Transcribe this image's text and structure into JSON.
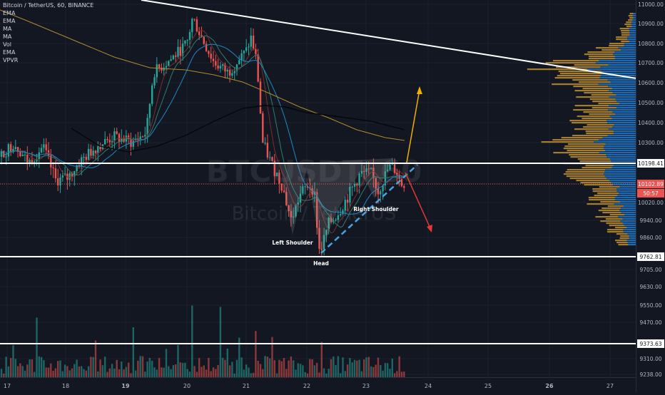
{
  "header": {
    "title": "Bitcoin / TetherUS, 60, BINANCE",
    "indicators": [
      "EMA",
      "EMA",
      "MA",
      "MA",
      "Vol",
      "EMA",
      "VPVR"
    ]
  },
  "watermark": {
    "symbol": "BTCUSDT, 60",
    "name": "Bitcoin / TetherUS"
  },
  "colors": {
    "background": "#131722",
    "grid": "#1e222d",
    "up": "#26a69a",
    "down": "#ef5350",
    "ema_fast": "#2e7d6b",
    "ema_slow": "#7b2d2d",
    "ma_long": "#000000",
    "ma_mid": "#b08a2a",
    "blue_ma": "#1e88c8",
    "vp_up": "#1e88e5",
    "vp_down": "#d4a032",
    "trendline": "#ffffff",
    "neckline": "#4aa3df",
    "arrow_up": "#f0b000",
    "arrow_down": "#e53935"
  },
  "chart_data": {
    "type": "candlestick",
    "symbol": "Bitcoin / TetherUS",
    "interval": "60",
    "exchange": "BINANCE",
    "x_ticks": [
      "17",
      "18",
      "19",
      "20",
      "21",
      "22",
      "23",
      "24",
      "25",
      "26",
      "27"
    ],
    "y_ticks": [
      11000,
      10900,
      10800,
      10700,
      10600,
      10500,
      10400,
      10300,
      10198.41,
      10102.89,
      10020,
      9940,
      9860,
      9762.81,
      9705,
      9630,
      9550,
      9470,
      9373.63,
      9310,
      9238
    ],
    "y_tick_labels": [
      "11000.00",
      "10900.00",
      "10800.00",
      "10700.00",
      "10600.00",
      "10500.00",
      "10400.00",
      "10300.00",
      "10198.41",
      "10102.89",
      "10020.00",
      "9940.00",
      "9860.00",
      "9762.81",
      "9705.00",
      "9630.00",
      "9550.00",
      "9470.00",
      "9373.63",
      "9310.00",
      "9238.00"
    ],
    "ylim": [
      9220,
      11010
    ],
    "last_price": "10102.89",
    "countdown": "50:57",
    "horizontal_levels": [
      "10198.41",
      "9762.81",
      "9373.63"
    ],
    "pattern_labels": {
      "left_shoulder": "Left Shoulder",
      "head": "Head",
      "right_shoulder": "Right Shoulder"
    },
    "ohlc_daily_approx": [
      {
        "day": "17",
        "open": 10250,
        "high": 10420,
        "low": 10000,
        "close": 10150
      },
      {
        "day": "18",
        "open": 10150,
        "high": 10350,
        "low": 10050,
        "close": 10200
      },
      {
        "day": "19",
        "open": 10200,
        "high": 10740,
        "low": 10150,
        "close": 10690
      },
      {
        "day": "20",
        "open": 10690,
        "high": 10950,
        "low": 10600,
        "close": 10760
      },
      {
        "day": "21",
        "open": 10760,
        "high": 10850,
        "low": 9880,
        "close": 10110
      },
      {
        "day": "22",
        "open": 10110,
        "high": 10190,
        "low": 9790,
        "close": 10080
      },
      {
        "day": "23",
        "open": 10080,
        "high": 10210,
        "low": 10030,
        "close": 10102.89
      }
    ]
  }
}
